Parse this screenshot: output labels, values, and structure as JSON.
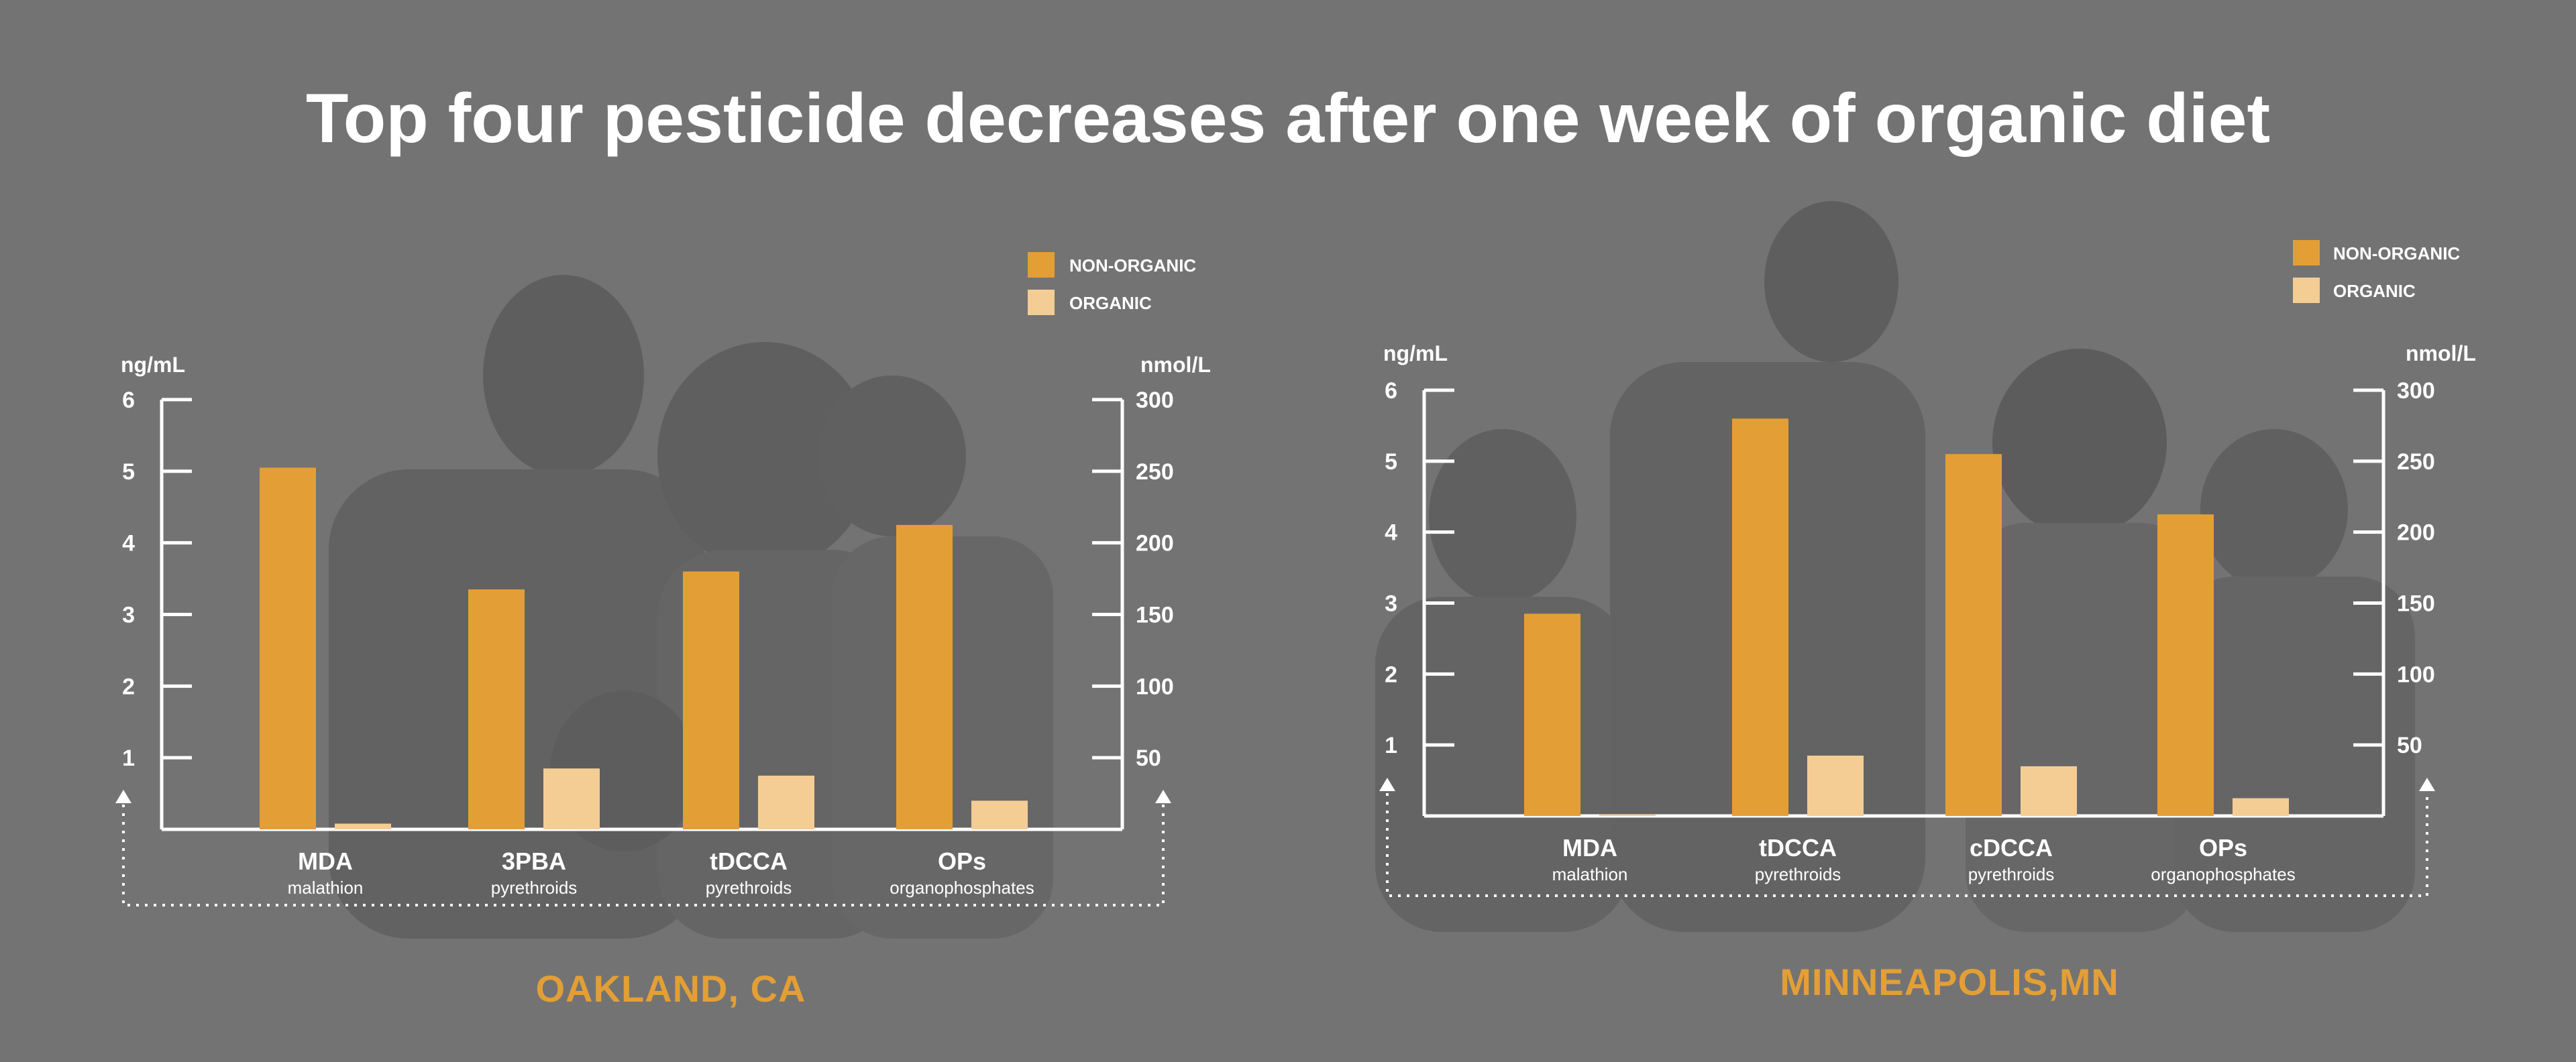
{
  "title": "Top four pesticide decreases after one week of organic diet",
  "colors": {
    "background": "#737373",
    "non_organic": "#e39f36",
    "organic": "#f4cd95",
    "axis": "#ffffff",
    "accent": "#e39f36"
  },
  "chart_data": [
    {
      "type": "bar",
      "title": "OAKLAND, CA",
      "ylabel_left": "ng/mL",
      "ylabel_right": "nmol/L",
      "ylim_left": [
        0,
        6
      ],
      "ylim_right": [
        0,
        300
      ],
      "left_ticks": [
        "1",
        "2",
        "3",
        "4",
        "5",
        "6"
      ],
      "right_ticks": [
        "50",
        "100",
        "150",
        "200",
        "250",
        "300"
      ],
      "categories": [
        "MDA",
        "3PBA",
        "tDCCA",
        "OPs"
      ],
      "subcategories": [
        "malathion",
        "pyrethroids",
        "pyrethroids",
        "organophosphates"
      ],
      "legend": [
        "NON-ORGANIC",
        "ORGANIC"
      ],
      "series": [
        {
          "name": "NON-ORGANIC",
          "values": [
            5.05,
            3.35,
            3.6,
            4.25
          ]
        },
        {
          "name": "ORGANIC",
          "values": [
            0.08,
            0.85,
            0.75,
            0.4
          ]
        }
      ]
    },
    {
      "type": "bar",
      "title": "MINNEAPOLIS,MN",
      "ylabel_left": "ng/mL",
      "ylabel_right": "nmol/L",
      "ylim_left": [
        0,
        6
      ],
      "ylim_right": [
        0,
        300
      ],
      "left_ticks": [
        "1",
        "2",
        "3",
        "4",
        "5",
        "6"
      ],
      "right_ticks": [
        "50",
        "100",
        "150",
        "200",
        "250",
        "300"
      ],
      "categories": [
        "MDA",
        "tDCCA",
        "cDCCA",
        "OPs"
      ],
      "subcategories": [
        "malathion",
        "pyrethroids",
        "pyrethroids",
        "organophosphates"
      ],
      "legend": [
        "NON-ORGANIC",
        "ORGANIC"
      ],
      "series": [
        {
          "name": "NON-ORGANIC",
          "values": [
            2.85,
            5.6,
            5.1,
            4.25
          ]
        },
        {
          "name": "ORGANIC",
          "values": [
            0.02,
            0.85,
            0.7,
            0.25
          ]
        }
      ]
    }
  ]
}
